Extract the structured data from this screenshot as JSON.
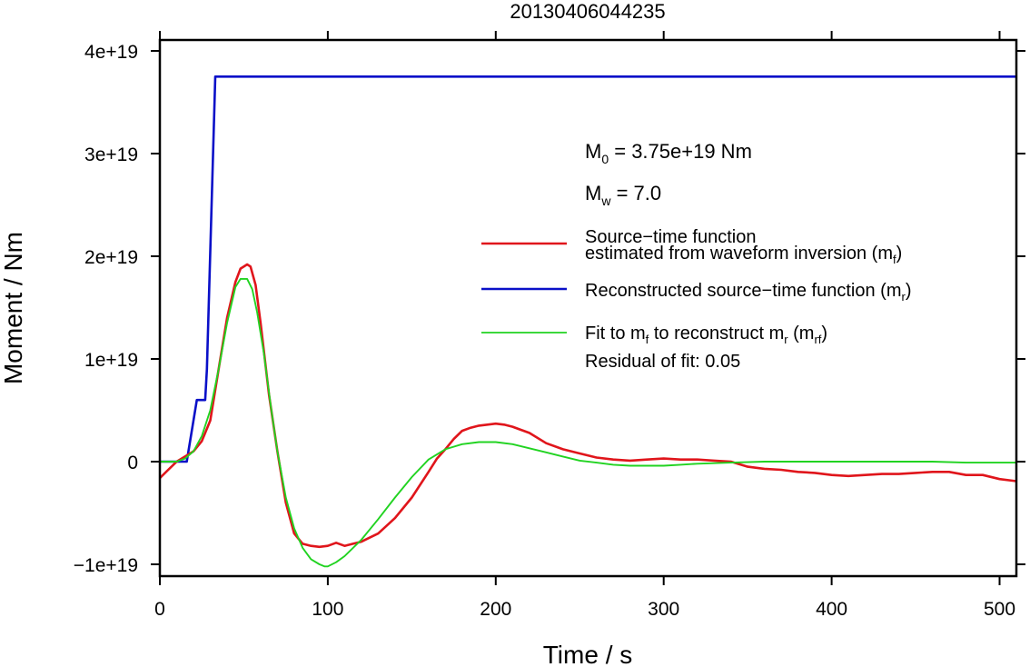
{
  "chart_data": {
    "type": "line",
    "title": "20130406044235",
    "xlabel": "Time / s",
    "ylabel": "Moment / Nm",
    "xlim": [
      0,
      510
    ],
    "ylim": [
      -1.1e+19,
      4.1e+19
    ],
    "x_ticks": [
      0,
      100,
      200,
      300,
      400,
      500
    ],
    "x_tick_labels": [
      "0",
      "100",
      "200",
      "300",
      "400",
      "500"
    ],
    "y_ticks": [
      -1e+19,
      0,
      1e+19,
      2e+19,
      3e+19,
      4e+19
    ],
    "y_tick_labels": [
      "−1e+19",
      "0",
      "1e+19",
      "2e+19",
      "3e+19",
      "4e+19"
    ],
    "grid": false,
    "legend_position": "right",
    "annotations": {
      "m0": {
        "base": "M",
        "sub": "0",
        "rest": " = 3.75e+19 Nm"
      },
      "mw": {
        "base": "M",
        "sub": "w",
        "rest": " = 7.0"
      },
      "residual": "Residual of fit: 0.05"
    },
    "series": [
      {
        "name": "Source−time function estimated from waveform inversion (mf)",
        "legend_line1": "Source−time function",
        "legend_line2_pre": "estimated from waveform inversion (m",
        "legend_line2_sub": "f",
        "legend_line2_post": ")",
        "color": "#e0151b",
        "x": [
          0,
          5,
          10,
          15,
          20,
          25,
          30,
          35,
          40,
          45,
          48,
          52,
          54,
          57,
          60,
          65,
          70,
          75,
          80,
          85,
          90,
          95,
          100,
          105,
          110,
          115,
          120,
          125,
          130,
          140,
          150,
          160,
          165,
          170,
          175,
          180,
          185,
          190,
          195,
          200,
          205,
          210,
          215,
          220,
          230,
          240,
          250,
          260,
          270,
          280,
          290,
          300,
          310,
          320,
          330,
          340,
          350,
          360,
          370,
          380,
          390,
          400,
          410,
          420,
          430,
          440,
          450,
          460,
          470,
          480,
          490,
          500,
          510
        ],
        "y": [
          -1.6e+18,
          -8e+17,
          0,
          5e+17,
          1e+18,
          2e+18,
          4e+18,
          9e+18,
          1.4e+19,
          1.75e+19,
          1.88e+19,
          1.92e+19,
          1.9e+19,
          1.72e+19,
          1.35e+19,
          6.5e+18,
          1e+18,
          -4e+18,
          -7e+18,
          -8e+18,
          -8.2e+18,
          -8.3e+18,
          -8.2e+18,
          -7.9e+18,
          -8.2e+18,
          -8e+18,
          -7.8e+18,
          -7.4e+18,
          -7e+18,
          -5.5e+18,
          -3.5e+18,
          -1e+18,
          3e+17,
          1.2e+18,
          2.2e+18,
          3e+18,
          3.3e+18,
          3.5e+18,
          3.6e+18,
          3.7e+18,
          3.6e+18,
          3.4e+18,
          3.1e+18,
          2.8e+18,
          1.8e+18,
          1.2e+18,
          8e+17,
          4e+17,
          2e+17,
          1e+17,
          2e+17,
          3e+17,
          2e+17,
          2e+17,
          1e+17,
          0,
          -5e+17,
          -7e+17,
          -8e+17,
          -1e+18,
          -1.1e+18,
          -1.3e+18,
          -1.4e+18,
          -1.3e+18,
          -1.2e+18,
          -1.2e+18,
          -1.1e+18,
          -1e+18,
          -1e+18,
          -1.3e+18,
          -1.3e+18,
          -1.7e+18,
          -1.9e+18
        ]
      },
      {
        "name": "Reconstructed source−time function (mr)",
        "legend_pre": "Reconstructed source−time function (m",
        "legend_sub": "r",
        "legend_post": ")",
        "color": "#0a10c8",
        "x": [
          0,
          16,
          22,
          27,
          28,
          33,
          34,
          510
        ],
        "y": [
          0,
          0,
          6e+18,
          6e+18,
          9e+18,
          3.75e+19,
          3.75e+19,
          3.75e+19
        ]
      },
      {
        "name": "Fit to mf to reconstruct mr (mrf)",
        "legend_parts": [
          "Fit to m",
          "f",
          " to reconstruct m",
          "r",
          " (m",
          "rf",
          ")"
        ],
        "color": "#21d321",
        "x": [
          0,
          10,
          15,
          20,
          25,
          30,
          35,
          40,
          45,
          48,
          52,
          55,
          58,
          62,
          66,
          70,
          75,
          80,
          85,
          90,
          95,
          98,
          100,
          105,
          110,
          120,
          130,
          140,
          150,
          160,
          170,
          180,
          190,
          200,
          210,
          220,
          230,
          240,
          250,
          260,
          270,
          280,
          290,
          300,
          310,
          320,
          340,
          360,
          380,
          400,
          420,
          440,
          460,
          480,
          500,
          510
        ],
        "y": [
          0,
          0,
          3e+17,
          1e+18,
          2.5e+18,
          5e+18,
          9e+18,
          1.35e+19,
          1.7e+19,
          1.78e+19,
          1.78e+19,
          1.68e+19,
          1.45e+19,
          1.05e+19,
          5.5e+18,
          1e+18,
          -3.5e+18,
          -6.5e+18,
          -8.4e+18,
          -9.5e+18,
          -1e+19,
          -1.02e+19,
          -1.02e+19,
          -9.8e+18,
          -9.2e+18,
          -7.6e+18,
          -5.6e+18,
          -3.5e+18,
          -1.5e+18,
          2e+17,
          1.2e+18,
          1.7e+18,
          1.9e+18,
          1.9e+18,
          1.7e+18,
          1.3e+18,
          9e+17,
          5e+17,
          1e+17,
          -1e+17,
          -3e+17,
          -4e+17,
          -4e+17,
          -4e+17,
          -3e+17,
          -2e+17,
          -1e+17,
          0,
          0,
          0,
          0,
          0,
          0,
          -1e+17,
          -1e+17,
          -1e+17
        ]
      }
    ]
  }
}
